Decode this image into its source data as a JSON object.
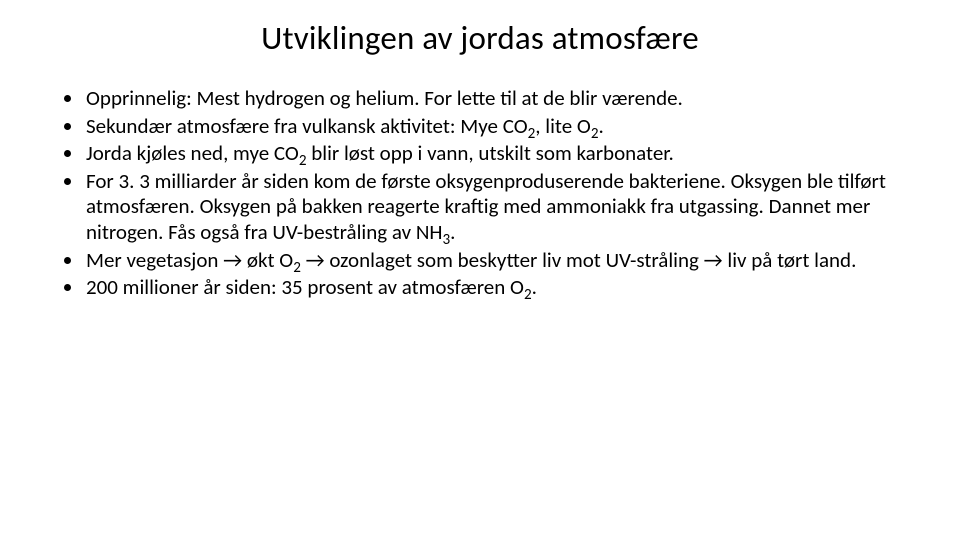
{
  "slide": {
    "background_color": "#ffffff",
    "text_color": "#000000",
    "title": "Utviklingen av jordas atmosfære",
    "title_fontsize": 33,
    "body_fontsize": 21,
    "bullets": [
      {
        "runs": [
          {
            "t": "Opprinnelig: Mest hydrogen og helium. For lette til at de blir værende."
          }
        ]
      },
      {
        "runs": [
          {
            "t": "Sekundær atmosfære fra vulkansk aktivitet: Mye CO"
          },
          {
            "t": "2",
            "sub": true
          },
          {
            "t": ", lite O"
          },
          {
            "t": "2",
            "sub": true
          },
          {
            "t": "."
          }
        ]
      },
      {
        "runs": [
          {
            "t": "Jorda kjøles ned, mye CO"
          },
          {
            "t": "2",
            "sub": true
          },
          {
            "t": " blir løst opp i vann, utskilt som karbonater."
          }
        ]
      },
      {
        "runs": [
          {
            "t": "For 3. 3 milliarder år siden kom de første oksygenproduserende bakteriene. Oksygen ble tilført atmosfæren.  Oksygen på bakken reagerte kraftig med ammoniakk fra utgassing. Dannet mer nitrogen.  Fås også fra UV-bestråling av NH"
          },
          {
            "t": "3",
            "sub": true
          },
          {
            "t": "."
          }
        ]
      },
      {
        "runs": [
          {
            "t": "Mer vegetasjon → økt O"
          },
          {
            "t": "2",
            "sub": true
          },
          {
            "t": " → ozonlaget som beskytter liv mot UV-stråling → liv på tørt land."
          }
        ]
      },
      {
        "runs": [
          {
            "t": "200 millioner år siden: 35 prosent av atmosfæren O"
          },
          {
            "t": "2",
            "sub": true
          },
          {
            "t": "."
          }
        ]
      }
    ]
  }
}
